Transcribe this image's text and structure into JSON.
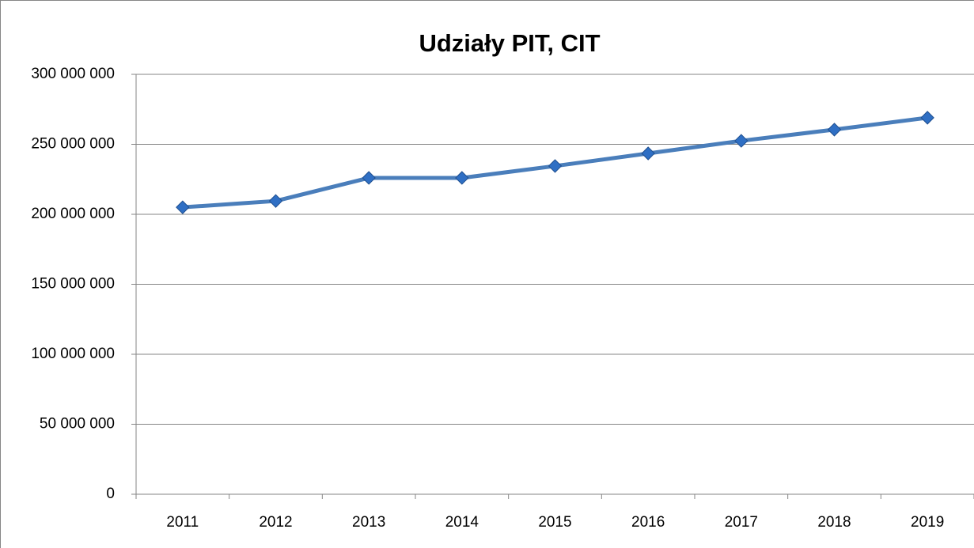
{
  "chart_data": {
    "type": "line",
    "title": "Udziały PIT, CIT",
    "categories": [
      "2011",
      "2012",
      "2013",
      "2014",
      "2015",
      "2016",
      "2017",
      "2018",
      "2019"
    ],
    "series": [
      {
        "name": "Udziały PIT, CIT",
        "color": "#4a7ebb",
        "values": [
          205000000,
          209500000,
          226000000,
          226000000,
          234500000,
          243500000,
          252500000,
          260500000,
          269000000
        ]
      }
    ],
    "ylim": [
      0,
      300000000
    ],
    "yticks": [
      0,
      {
        "value": 50000000,
        "label": "50 000 000"
      },
      {
        "value": 100000000,
        "label": "100 000 000"
      },
      {
        "value": 150000000,
        "label": "150 000 000"
      },
      {
        "value": 200000000,
        "label": "200 000 000"
      },
      {
        "value": 250000000,
        "label": "250 000 000"
      },
      {
        "value": 300000000,
        "label": "300 000 000"
      }
    ],
    "grid": true
  }
}
